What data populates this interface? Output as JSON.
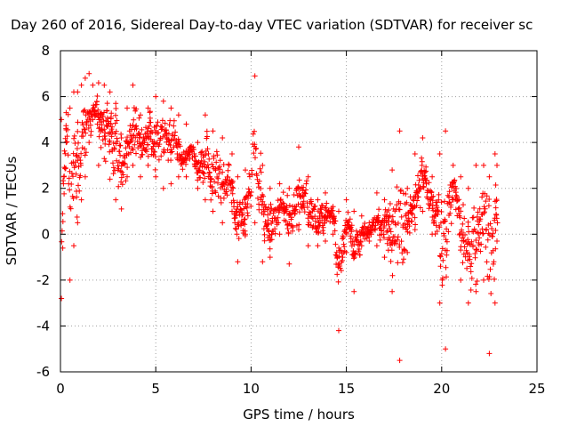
{
  "chart_data": {
    "type": "scatter",
    "title": "Day 260 of 2016, Sidereal Day-to-day VTEC variation (SDTVAR) for receiver sc",
    "xlabel": "GPS time / hours",
    "ylabel": "SDTVAR / TECUs",
    "xlim": [
      0,
      25
    ],
    "ylim": [
      -6,
      8
    ],
    "xticks": [
      0,
      5,
      10,
      15,
      20,
      25
    ],
    "yticks": [
      -6,
      -4,
      -2,
      0,
      2,
      4,
      6,
      8
    ],
    "grid": true,
    "marker": "+",
    "series": [
      {
        "name": "SDTVAR",
        "color": "#ff0000",
        "envelope": [
          [
            0.05,
            -2.8,
            5.0
          ],
          [
            0.3,
            4.0,
            5.3
          ],
          [
            0.5,
            -2.0,
            5.5
          ],
          [
            0.7,
            -0.5,
            6.2
          ],
          [
            0.9,
            0.5,
            6.2
          ],
          [
            1.1,
            1.5,
            6.5
          ],
          [
            1.3,
            2.5,
            6.8
          ],
          [
            1.5,
            4.0,
            7.0
          ],
          [
            1.7,
            5.0,
            6.5
          ],
          [
            2.0,
            3.0,
            6.6
          ],
          [
            2.3,
            3.3,
            6.5
          ],
          [
            2.6,
            2.4,
            6.2
          ],
          [
            2.9,
            1.5,
            5.7
          ],
          [
            3.2,
            1.1,
            4.2
          ],
          [
            3.5,
            2.5,
            5.5
          ],
          [
            3.8,
            3.0,
            6.5
          ],
          [
            4.2,
            2.5,
            5.2
          ],
          [
            4.6,
            3.0,
            5.5
          ],
          [
            5.0,
            2.5,
            6.0
          ],
          [
            5.4,
            2.0,
            5.8
          ],
          [
            5.8,
            2.2,
            5.5
          ],
          [
            6.2,
            2.5,
            5.2
          ],
          [
            6.6,
            2.5,
            4.8
          ],
          [
            7.2,
            2.0,
            4.0
          ],
          [
            7.6,
            1.5,
            5.2
          ],
          [
            8.0,
            1.0,
            4.5
          ],
          [
            8.5,
            0.5,
            4.2
          ],
          [
            9.0,
            1.0,
            3.5
          ],
          [
            9.3,
            -1.2,
            2.5
          ],
          [
            9.7,
            0.0,
            2.8
          ],
          [
            10.2,
            0.5,
            6.9
          ],
          [
            10.6,
            -1.2,
            3.0
          ],
          [
            11.0,
            -1.0,
            2.0
          ],
          [
            11.5,
            0.0,
            2.2
          ],
          [
            12.0,
            -1.3,
            2.0
          ],
          [
            12.5,
            0.2,
            3.8
          ],
          [
            13.0,
            -0.5,
            2.5
          ],
          [
            13.5,
            -0.5,
            1.5
          ],
          [
            13.9,
            -0.3,
            1.8
          ],
          [
            14.3,
            0.0,
            1.2
          ],
          [
            14.6,
            -4.2,
            1.0
          ],
          [
            15.0,
            -0.8,
            1.5
          ],
          [
            15.4,
            -2.5,
            1.0
          ],
          [
            15.8,
            -0.5,
            0.8
          ],
          [
            16.2,
            -0.3,
            0.5
          ],
          [
            16.6,
            -0.5,
            1.8
          ],
          [
            17.0,
            -1.0,
            1.5
          ],
          [
            17.4,
            -2.5,
            2.8
          ],
          [
            17.8,
            -5.5,
            4.5
          ],
          [
            18.2,
            -0.8,
            2.0
          ],
          [
            18.6,
            0.2,
            3.5
          ],
          [
            19.0,
            1.0,
            4.2
          ],
          [
            19.5,
            0.0,
            2.5
          ],
          [
            19.9,
            -3.0,
            3.5
          ],
          [
            20.2,
            -5.0,
            4.5
          ],
          [
            20.6,
            1.5,
            3.0
          ],
          [
            21.0,
            -2.0,
            2.5
          ],
          [
            21.4,
            -3.0,
            2.0
          ],
          [
            21.8,
            -2.5,
            3.0
          ],
          [
            22.2,
            -2.0,
            3.0
          ],
          [
            22.5,
            -5.2,
            2.5
          ],
          [
            22.8,
            -3.0,
            3.5
          ],
          [
            22.9,
            -0.3,
            3.0
          ]
        ]
      }
    ]
  }
}
